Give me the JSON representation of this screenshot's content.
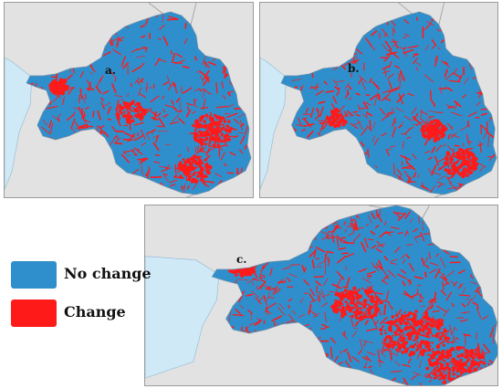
{
  "panels": [
    {
      "id": "a",
      "label": "a."
    },
    {
      "id": "b",
      "label": "b."
    },
    {
      "id": "c",
      "label": "c."
    }
  ],
  "legend": {
    "items": [
      {
        "label": "No change",
        "color": "#2f8fcc"
      },
      {
        "label": "Change",
        "color": "#ff1a1a"
      }
    ]
  },
  "colors": {
    "no_change": "#2f8fcc",
    "change": "#ff1a1a",
    "water": "#cfe9f7",
    "background": "#e2e2e2",
    "border_line": "#9a9a9a"
  }
}
